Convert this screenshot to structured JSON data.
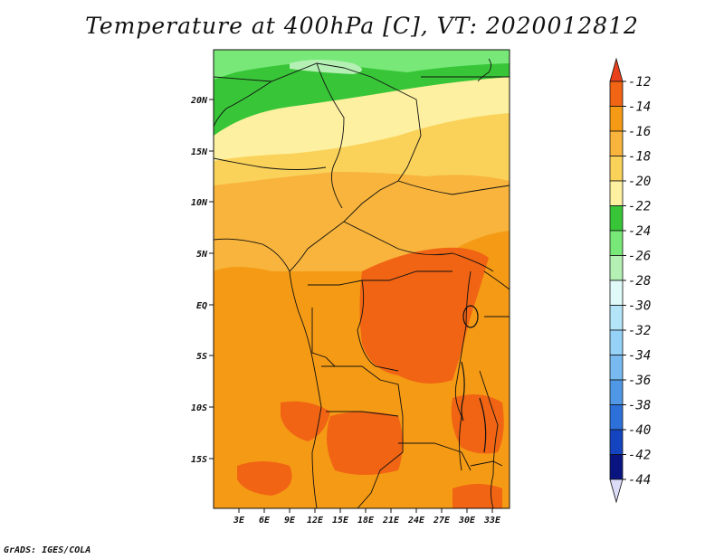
{
  "title": "Temperature at 400hPa [C], VT: 2020012812",
  "credit": "GrADS: IGES/COLA",
  "map": {
    "lon_labels": [
      "3E",
      "6E",
      "9E",
      "12E",
      "15E",
      "18E",
      "21E",
      "24E",
      "27E",
      "30E",
      "33E"
    ],
    "lat_labels": [
      "20N",
      "15N",
      "10N",
      "5N",
      "EQ",
      "5S",
      "10S",
      "15S"
    ]
  },
  "colorbar": {
    "labels": [
      "-12",
      "-14",
      "-16",
      "-18",
      "-20",
      "-22",
      "-24",
      "-26",
      "-28",
      "-30",
      "-32",
      "-34",
      "-36",
      "-38",
      "-40",
      "-42",
      "-44"
    ],
    "colors": [
      "#e8401c",
      "#f06414",
      "#f59a14",
      "#f8b43c",
      "#fad25a",
      "#fdf0a0",
      "#38c638",
      "#78e878",
      "#b4f0b4",
      "#e0fafa",
      "#b4e4f8",
      "#96d2f8",
      "#78baf0",
      "#5098e6",
      "#2d70da",
      "#1444c0",
      "#0a1480",
      "#dcdcf8"
    ]
  }
}
